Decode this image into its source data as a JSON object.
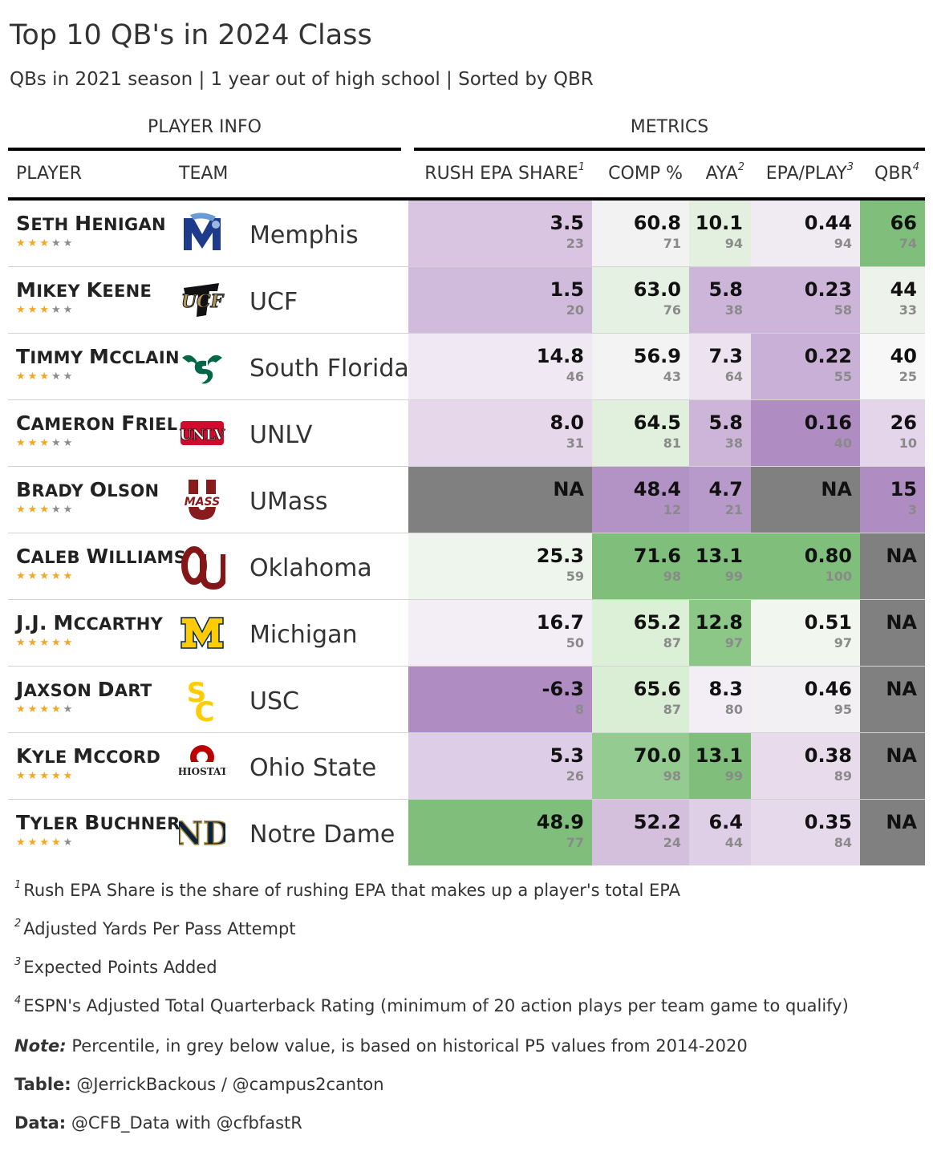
{
  "title": "Top 10 QB's in 2024 Class",
  "subtitle": "QBs in 2021 season | 1 year out of high school | Sorted by QBR",
  "spanners": {
    "player_info": "PLAYER INFO",
    "metrics": "METRICS"
  },
  "columns": {
    "player": "PLAYER",
    "team": "TEAM",
    "rush_epa_share": "RUSH EPA SHARE",
    "rush_epa_share_fn": "1",
    "comp_pct": "COMP %",
    "aya": "AYA",
    "aya_fn": "2",
    "epa_play": "EPA/PLAY",
    "epa_play_fn": "3",
    "qbr": "QBR",
    "qbr_fn": "4"
  },
  "colors": {
    "na_fill": "#808080",
    "green_strong": "#7fbf7b",
    "purple_strong": "#af8dc3",
    "neutral": "#f7f7f7",
    "star_filled": "#f5a623",
    "star_empty": "#8c8c8c"
  },
  "chart_data": {
    "type": "table",
    "rows": [
      {
        "first": "Seth",
        "last": "Henigan",
        "stars": 3,
        "team": "Memphis",
        "logo_icon": "memphis-tiger-logo-icon",
        "rush": "3.5",
        "rush_pct": "23",
        "rush_color": "#d9c5e1",
        "comp": "60.8",
        "comp_pct": "71",
        "comp_color": "#f2f2f2",
        "aya": "10.1",
        "aya_pct": "94",
        "aya_color": "#e3f0df",
        "epa": "0.44",
        "epa_pct": "94",
        "epa_color": "#f0eaf2",
        "qbr": "66",
        "qbr_pct": "74",
        "qbr_color": "#7fbf7b"
      },
      {
        "first": "Mikey",
        "last": "Keene",
        "stars": 3,
        "team": "UCF",
        "logo_icon": "ucf-knights-logo-icon",
        "rush": "1.5",
        "rush_pct": "20",
        "rush_color": "#d1bbdc",
        "comp": "63.0",
        "comp_pct": "76",
        "comp_color": "#e5f1e2",
        "aya": "5.8",
        "aya_pct": "38",
        "aya_color": "#ccb5d9",
        "epa": "0.23",
        "epa_pct": "58",
        "epa_color": "#ccb5d9",
        "qbr": "44",
        "qbr_pct": "33",
        "qbr_color": "#edf3ea"
      },
      {
        "first": "Timmy",
        "last": "McClain",
        "stars": 3,
        "team": "South Florida",
        "logo_icon": "usf-bulls-logo-icon",
        "rush": "14.8",
        "rush_pct": "46",
        "rush_color": "#f0e9f3",
        "comp": "56.9",
        "comp_pct": "43",
        "comp_color": "#f3f3f3",
        "aya": "7.3",
        "aya_pct": "64",
        "aya_color": "#ede3f0",
        "epa": "0.22",
        "epa_pct": "55",
        "epa_color": "#c9b0d7",
        "qbr": "40",
        "qbr_pct": "25",
        "qbr_color": "#f7f7f7"
      },
      {
        "first": "Cameron",
        "last": "Friel",
        "stars": 3,
        "team": "UNLV",
        "logo_icon": "unlv-logo-icon",
        "rush": "8.0",
        "rush_pct": "31",
        "rush_color": "#e6d7eb",
        "comp": "64.5",
        "comp_pct": "81",
        "comp_color": "#e1f0dc",
        "aya": "5.8",
        "aya_pct": "38",
        "aya_color": "#ccb5d9",
        "epa": "0.16",
        "epa_pct": "40",
        "epa_color": "#af8dc3",
        "qbr": "26",
        "qbr_pct": "10",
        "qbr_color": "#e4d5ea"
      },
      {
        "first": "Brady",
        "last": "Olson",
        "stars": 3,
        "team": "UMass",
        "logo_icon": "umass-logo-icon",
        "rush": "NA",
        "rush_pct": "",
        "rush_color": "#808080",
        "comp": "48.4",
        "comp_pct": "12",
        "comp_color": "#b392c6",
        "aya": "4.7",
        "aya_pct": "21",
        "aya_color": "#b79ac9",
        "epa": "NA",
        "epa_pct": "",
        "epa_color": "#808080",
        "qbr": "15",
        "qbr_pct": "3",
        "qbr_color": "#af8dc3"
      },
      {
        "first": "Caleb",
        "last": "Williams",
        "stars": 5,
        "team": "Oklahoma",
        "logo_icon": "oklahoma-ou-logo-icon",
        "rush": "25.3",
        "rush_pct": "59",
        "rush_color": "#eef5ec",
        "comp": "71.6",
        "comp_pct": "98",
        "comp_color": "#7fbf7b",
        "aya": "13.1",
        "aya_pct": "99",
        "aya_color": "#7fbf7b",
        "epa": "0.80",
        "epa_pct": "100",
        "epa_color": "#7fbf7b",
        "qbr": "NA",
        "qbr_pct": "",
        "qbr_color": "#808080"
      },
      {
        "first": "J.J.",
        "last": "McCarthy",
        "stars": 5,
        "team": "Michigan",
        "logo_icon": "michigan-block-m-logo-icon",
        "rush": "16.7",
        "rush_pct": "50",
        "rush_color": "#f3eef5",
        "comp": "65.2",
        "comp_pct": "87",
        "comp_color": "#dcefd7",
        "aya": "12.8",
        "aya_pct": "97",
        "aya_color": "#8cc788",
        "epa": "0.51",
        "epa_pct": "97",
        "epa_color": "#f1f6ee",
        "qbr": "NA",
        "qbr_pct": "",
        "qbr_color": "#808080"
      },
      {
        "first": "Jaxson",
        "last": "Dart",
        "stars": 4,
        "team": "USC",
        "logo_icon": "usc-sc-logo-icon",
        "rush": "-6.3",
        "rush_pct": "8",
        "rush_color": "#af8dc3",
        "comp": "65.6",
        "comp_pct": "87",
        "comp_color": "#daeed5",
        "aya": "8.3",
        "aya_pct": "80",
        "aya_color": "#f3eef5",
        "epa": "0.46",
        "epa_pct": "95",
        "epa_color": "#f3f0f4",
        "qbr": "NA",
        "qbr_pct": "",
        "qbr_color": "#808080"
      },
      {
        "first": "Kyle",
        "last": "McCord",
        "stars": 5,
        "team": "Ohio State",
        "logo_icon": "ohio-state-logo-icon",
        "rush": "5.3",
        "rush_pct": "26",
        "rush_color": "#decde6",
        "comp": "70.0",
        "comp_pct": "98",
        "comp_color": "#94cb90",
        "aya": "13.1",
        "aya_pct": "99",
        "aya_color": "#7fbf7b",
        "epa": "0.38",
        "epa_pct": "89",
        "epa_color": "#e8dcec",
        "qbr": "NA",
        "qbr_pct": "",
        "qbr_color": "#808080"
      },
      {
        "first": "Tyler",
        "last": "Buchner",
        "stars": 4,
        "team": "Notre Dame",
        "logo_icon": "notre-dame-nd-logo-icon",
        "rush": "48.9",
        "rush_pct": "77",
        "rush_color": "#7fbf7b",
        "comp": "52.2",
        "comp_pct": "24",
        "comp_color": "#d4bfdd",
        "aya": "6.4",
        "aya_pct": "44",
        "aya_color": "#dfcfe6",
        "epa": "0.35",
        "epa_pct": "84",
        "epa_color": "#e6d9eb",
        "qbr": "NA",
        "qbr_pct": "",
        "qbr_color": "#808080"
      }
    ]
  },
  "footnotes": [
    {
      "mark": "1",
      "text": "Rush EPA Share is the share of rushing EPA that makes up a player's total EPA"
    },
    {
      "mark": "2",
      "text": "Adjusted Yards Per Pass Attempt"
    },
    {
      "mark": "3",
      "text": "Expected Points Added"
    },
    {
      "mark": "4",
      "text": "ESPN's Adjusted Total Quarterback Rating (minimum of 20 action plays per team game to qualify)"
    }
  ],
  "source_notes": {
    "note_label": "Note:",
    "note_text": " Percentile, in grey below value, is based on historical P5 values from 2014-2020",
    "table_label": "Table:",
    "table_text": " @JerrickBackous / @campus2canton",
    "data_label": "Data:",
    "data_text": " @CFB_Data with @cfbfastR"
  }
}
